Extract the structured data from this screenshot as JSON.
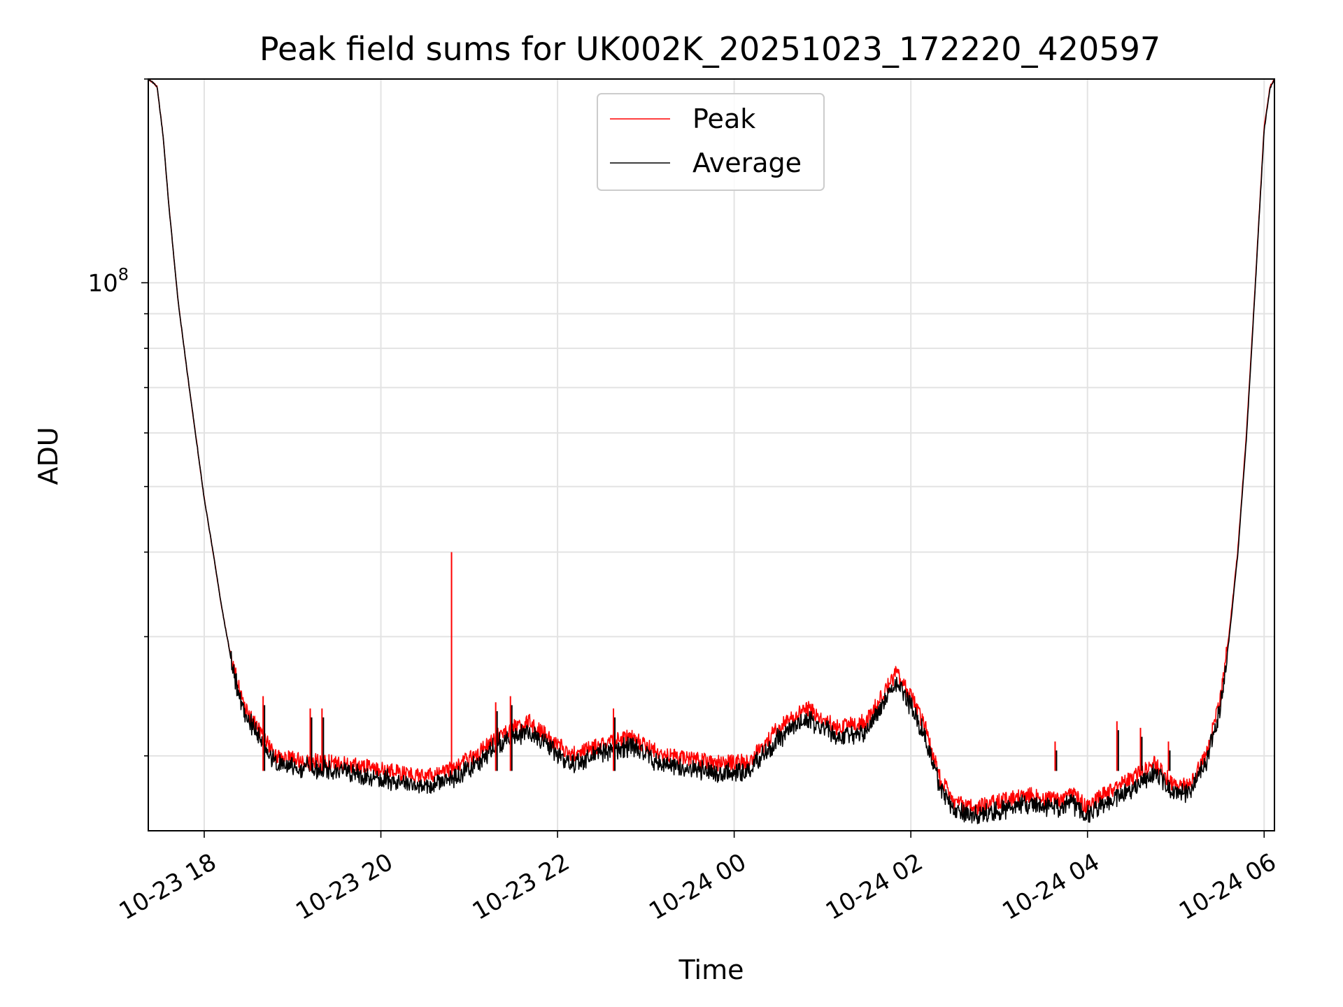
{
  "chart_data": {
    "type": "line",
    "title": "Peak field sums for UK002K_20251023_172220_420597",
    "xlabel": "Time",
    "ylabel": "ADU",
    "yscale": "log",
    "ylim": [
      15500000,
      200000000
    ],
    "xlim": [
      "2025-10-23 17:22",
      "2025-10-24 06:07"
    ],
    "grid": true,
    "legend_position": "top-center",
    "x_ticks": [
      {
        "value": "2025-10-23 18:00",
        "label": "10-23 18"
      },
      {
        "value": "2025-10-23 20:00",
        "label": "10-23 20"
      },
      {
        "value": "2025-10-23 22:00",
        "label": "10-23 22"
      },
      {
        "value": "2025-10-24 00:00",
        "label": "10-24 00"
      },
      {
        "value": "2025-10-24 02:00",
        "label": "10-24 02"
      },
      {
        "value": "2025-10-24 04:00",
        "label": "10-24 04"
      },
      {
        "value": "2025-10-24 06:00",
        "label": "10-24 06"
      }
    ],
    "y_major_ticks": [
      {
        "value": 100000000,
        "base": "10",
        "exponent": "8"
      }
    ],
    "y_minor_ticks": [
      20000000,
      30000000,
      40000000,
      50000000,
      60000000,
      70000000,
      80000000,
      90000000,
      200000000
    ],
    "series": [
      {
        "name": "Peak",
        "color": "#ff0000",
        "x": [
          "2025-10-23 17:22",
          "2025-10-23 17:28",
          "2025-10-23 17:32",
          "2025-10-23 17:36",
          "2025-10-23 17:42",
          "2025-10-23 17:48",
          "2025-10-23 17:54",
          "2025-10-23 18:00",
          "2025-10-23 18:06",
          "2025-10-23 18:12",
          "2025-10-23 18:18",
          "2025-10-23 18:22",
          "2025-10-23 18:26",
          "2025-10-23 18:30",
          "2025-10-23 18:36",
          "2025-10-23 18:42",
          "2025-10-23 18:48",
          "2025-10-23 19:00",
          "2025-10-23 19:30",
          "2025-10-23 19:50",
          "2025-10-23 20:10",
          "2025-10-23 20:30",
          "2025-10-23 20:50",
          "2025-10-23 21:00",
          "2025-10-23 21:10",
          "2025-10-23 21:20",
          "2025-10-23 21:40",
          "2025-10-23 22:00",
          "2025-10-23 22:10",
          "2025-10-23 22:30",
          "2025-10-23 22:50",
          "2025-10-23 23:10",
          "2025-10-23 23:30",
          "2025-10-23 23:50",
          "2025-10-24 00:10",
          "2025-10-24 00:30",
          "2025-10-24 00:50",
          "2025-10-24 01:10",
          "2025-10-24 01:30",
          "2025-10-24 01:50",
          "2025-10-24 02:00",
          "2025-10-24 02:10",
          "2025-10-24 02:20",
          "2025-10-24 02:30",
          "2025-10-24 02:45",
          "2025-10-24 03:00",
          "2025-10-24 03:20",
          "2025-10-24 03:40",
          "2025-10-24 03:50",
          "2025-10-24 04:00",
          "2025-10-24 04:10",
          "2025-10-24 04:30",
          "2025-10-24 04:45",
          "2025-10-24 05:00",
          "2025-10-24 05:10",
          "2025-10-24 05:20",
          "2025-10-24 05:30",
          "2025-10-24 05:36",
          "2025-10-24 05:42",
          "2025-10-24 05:48",
          "2025-10-24 05:54",
          "2025-10-24 06:00",
          "2025-10-24 06:04",
          "2025-10-24 06:07"
        ],
        "values": [
          200000000,
          195000000,
          165000000,
          130000000,
          95000000,
          75000000,
          60000000,
          48000000,
          40000000,
          33000000,
          28000000,
          26000000,
          24000000,
          23000000,
          22000000,
          21000000,
          20000000,
          19800000,
          19500000,
          19300000,
          18900000,
          18600000,
          19200000,
          19800000,
          20500000,
          21500000,
          22500000,
          20800000,
          20100000,
          20800000,
          21300000,
          20100000,
          19800000,
          19500000,
          19600000,
          22000000,
          23500000,
          22000000,
          22500000,
          26500000,
          24500000,
          22000000,
          18500000,
          17000000,
          16800000,
          17100000,
          17500000,
          17200000,
          17500000,
          16800000,
          17500000,
          18500000,
          19500000,
          18000000,
          18200000,
          20000000,
          24000000,
          30000000,
          40000000,
          60000000,
          100000000,
          170000000,
          195000000,
          200000000
        ]
      },
      {
        "name": "Average",
        "color": "#000000",
        "x": [
          "2025-10-23 17:22",
          "2025-10-23 17:28",
          "2025-10-23 17:32",
          "2025-10-23 17:36",
          "2025-10-23 17:42",
          "2025-10-23 17:48",
          "2025-10-23 17:54",
          "2025-10-23 18:00",
          "2025-10-23 18:06",
          "2025-10-23 18:12",
          "2025-10-23 18:18",
          "2025-10-23 18:22",
          "2025-10-23 18:26",
          "2025-10-23 18:30",
          "2025-10-23 18:36",
          "2025-10-23 18:42",
          "2025-10-23 18:48",
          "2025-10-23 19:00",
          "2025-10-23 19:30",
          "2025-10-23 19:50",
          "2025-10-23 20:10",
          "2025-10-23 20:30",
          "2025-10-23 20:50",
          "2025-10-23 21:00",
          "2025-10-23 21:10",
          "2025-10-23 21:20",
          "2025-10-23 21:40",
          "2025-10-23 22:00",
          "2025-10-23 22:10",
          "2025-10-23 22:30",
          "2025-10-23 22:50",
          "2025-10-23 23:10",
          "2025-10-23 23:30",
          "2025-10-23 23:50",
          "2025-10-24 00:10",
          "2025-10-24 00:30",
          "2025-10-24 00:50",
          "2025-10-24 01:10",
          "2025-10-24 01:30",
          "2025-10-24 01:50",
          "2025-10-24 02:00",
          "2025-10-24 02:10",
          "2025-10-24 02:20",
          "2025-10-24 02:30",
          "2025-10-24 02:45",
          "2025-10-24 03:00",
          "2025-10-24 03:20",
          "2025-10-24 03:40",
          "2025-10-24 03:50",
          "2025-10-24 04:00",
          "2025-10-24 04:10",
          "2025-10-24 04:30",
          "2025-10-24 04:45",
          "2025-10-24 05:00",
          "2025-10-24 05:10",
          "2025-10-24 05:20",
          "2025-10-24 05:30",
          "2025-10-24 05:36",
          "2025-10-24 05:42",
          "2025-10-24 05:48",
          "2025-10-24 05:54",
          "2025-10-24 06:00",
          "2025-10-24 06:04",
          "2025-10-24 06:07"
        ],
        "values": [
          200000000,
          195000000,
          165000000,
          130000000,
          95000000,
          75000000,
          60000000,
          48000000,
          40000000,
          33000000,
          28000000,
          25800000,
          23800000,
          22800000,
          21800000,
          20800000,
          19800000,
          19500000,
          19200000,
          18900000,
          18500000,
          18200000,
          18800000,
          19400000,
          20100000,
          21100000,
          22000000,
          20400000,
          19700000,
          20400000,
          20900000,
          19700000,
          19400000,
          19100000,
          19200000,
          21500000,
          23000000,
          21500000,
          22000000,
          26000000,
          24000000,
          21500000,
          18100000,
          16700000,
          16500000,
          16800000,
          17200000,
          16900000,
          17200000,
          16500000,
          17200000,
          18100000,
          19100000,
          17700000,
          17900000,
          19700000,
          23600000,
          29500000,
          39500000,
          59000000,
          99000000,
          168000000,
          194000000,
          200000000
        ]
      }
    ],
    "spikes": [
      {
        "x": "2025-10-23 18:40",
        "value": 24500000,
        "series": "Peak"
      },
      {
        "x": "2025-10-23 19:12",
        "value": 23500000,
        "series": "Peak"
      },
      {
        "x": "2025-10-23 19:20",
        "value": 23500000,
        "series": "Peak"
      },
      {
        "x": "2025-10-23 20:48",
        "value": 40000000,
        "series": "Peak"
      },
      {
        "x": "2025-10-23 21:18",
        "value": 24000000,
        "series": "Peak"
      },
      {
        "x": "2025-10-23 21:28",
        "value": 24500000,
        "series": "Peak"
      },
      {
        "x": "2025-10-23 22:38",
        "value": 23500000,
        "series": "Peak"
      },
      {
        "x": "2025-10-24 03:38",
        "value": 21000000,
        "series": "Peak"
      },
      {
        "x": "2025-10-24 04:20",
        "value": 22500000,
        "series": "Peak"
      },
      {
        "x": "2025-10-24 04:36",
        "value": 22000000,
        "series": "Peak"
      },
      {
        "x": "2025-10-24 04:55",
        "value": 21000000,
        "series": "Peak"
      }
    ]
  }
}
